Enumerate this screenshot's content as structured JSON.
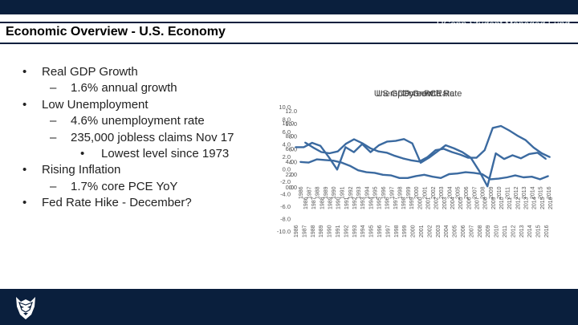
{
  "header": {
    "title": "Economic Overview - U.S. Economy"
  },
  "bullets": {
    "gdp": "Real GDP Growth",
    "gdp_sub": "1.6% annual growth",
    "unemp": "Low Unemployment",
    "unemp_sub": "4.6% unemployment rate",
    "claims_sub": "235,000 jobless claims Nov 17",
    "claims_sub2": "Lowest level since 1973",
    "inflation": "Rising Inflation",
    "inflation_sub": "1.7% core PCE YoY",
    "fed": "Fed Rate Hike - December?",
    "dash": "–",
    "dot": "•"
  },
  "footer": {
    "text": "UConn Student Managed Fund"
  },
  "colors": {
    "navy": "#0a1f3d",
    "series": "#3b6aa0"
  },
  "chart_data": [
    {
      "type": "line",
      "title": "Unemployment Rate",
      "x": [
        "1986",
        "1987",
        "1988",
        "1989",
        "1990",
        "1991",
        "1992",
        "1993",
        "1994",
        "1995",
        "1996",
        "1997",
        "1998",
        "1999",
        "2000",
        "2001",
        "2002",
        "2003",
        "2004",
        "2005",
        "2006",
        "2007",
        "2008",
        "2009",
        "2010",
        "2011",
        "2012",
        "2013",
        "2014",
        "2015",
        "2016"
      ],
      "ylim": [
        0,
        12
      ],
      "yticks": [
        "12.0",
        "10.0",
        "8.0",
        "6.0",
        "4.0",
        "2.0",
        "0.0"
      ],
      "series": [
        {
          "name": "Unemployment Rate",
          "values": [
            7.0,
            6.2,
            5.5,
            5.3,
            5.6,
            6.8,
            7.5,
            6.9,
            6.1,
            5.6,
            5.4,
            4.9,
            4.5,
            4.2,
            4.0,
            4.7,
            5.8,
            6.0,
            5.5,
            5.1,
            4.6,
            4.6,
            5.8,
            9.3,
            9.6,
            8.9,
            8.1,
            7.4,
            6.2,
            5.3,
            4.7
          ]
        }
      ]
    },
    {
      "type": "line",
      "title": "US GDP Growth Rate",
      "x": [
        "1986",
        "1987",
        "1988",
        "1989",
        "1990",
        "1991",
        "1992",
        "1993",
        "1994",
        "1995",
        "1996",
        "1997",
        "1998",
        "1999",
        "2000",
        "2001",
        "2002",
        "2003",
        "2004",
        "2005",
        "2006",
        "2007",
        "2008",
        "2009",
        "2010",
        "2011",
        "2012",
        "2013",
        "2014",
        "2015",
        "2016"
      ],
      "ylim": [
        -10,
        10
      ],
      "yticks": [
        "10.0",
        "8.0",
        "6.0",
        "4.0",
        "2.0",
        "0.0",
        "-2.0",
        "-4.0",
        "-6.0",
        "-8.0",
        "-10.0"
      ],
      "series": [
        {
          "name": "GDP Growth Rate",
          "values": [
            3.5,
            3.5,
            4.2,
            3.7,
            1.9,
            -0.1,
            3.5,
            2.7,
            4.0,
            2.7,
            3.8,
            4.4,
            4.5,
            4.8,
            4.1,
            1.0,
            1.8,
            2.8,
            3.8,
            3.3,
            2.7,
            1.8,
            -0.3,
            -2.8,
            2.5,
            1.6,
            2.2,
            1.7,
            2.4,
            2.6,
            1.6
          ]
        }
      ]
    },
    {
      "type": "line",
      "title": "Core PCE",
      "x": [
        "1986",
        "1987",
        "1988",
        "1989",
        "1990",
        "1991",
        "1992",
        "1993",
        "1994",
        "1995",
        "1996",
        "1997",
        "1998",
        "1999",
        "2000",
        "2001",
        "2002",
        "2003",
        "2004",
        "2005",
        "2006",
        "2007",
        "2008",
        "2009",
        "2010",
        "2011",
        "2012",
        "2013",
        "2014",
        "2015",
        "2016"
      ],
      "ylim": [
        0,
        10
      ],
      "yticks": [
        "10.0",
        "8.0",
        "6.0",
        "4.0",
        "2.0",
        "0.0"
      ],
      "series": [
        {
          "name": "Core PCE YoY",
          "values": [
            3.9,
            3.8,
            4.3,
            4.2,
            4.1,
            3.8,
            3.3,
            2.6,
            2.3,
            2.2,
            1.9,
            1.8,
            1.4,
            1.4,
            1.7,
            1.9,
            1.6,
            1.4,
            2.0,
            2.1,
            2.3,
            2.2,
            2.0,
            1.2,
            1.3,
            1.5,
            1.8,
            1.5,
            1.6,
            1.2,
            1.7
          ]
        }
      ]
    }
  ]
}
